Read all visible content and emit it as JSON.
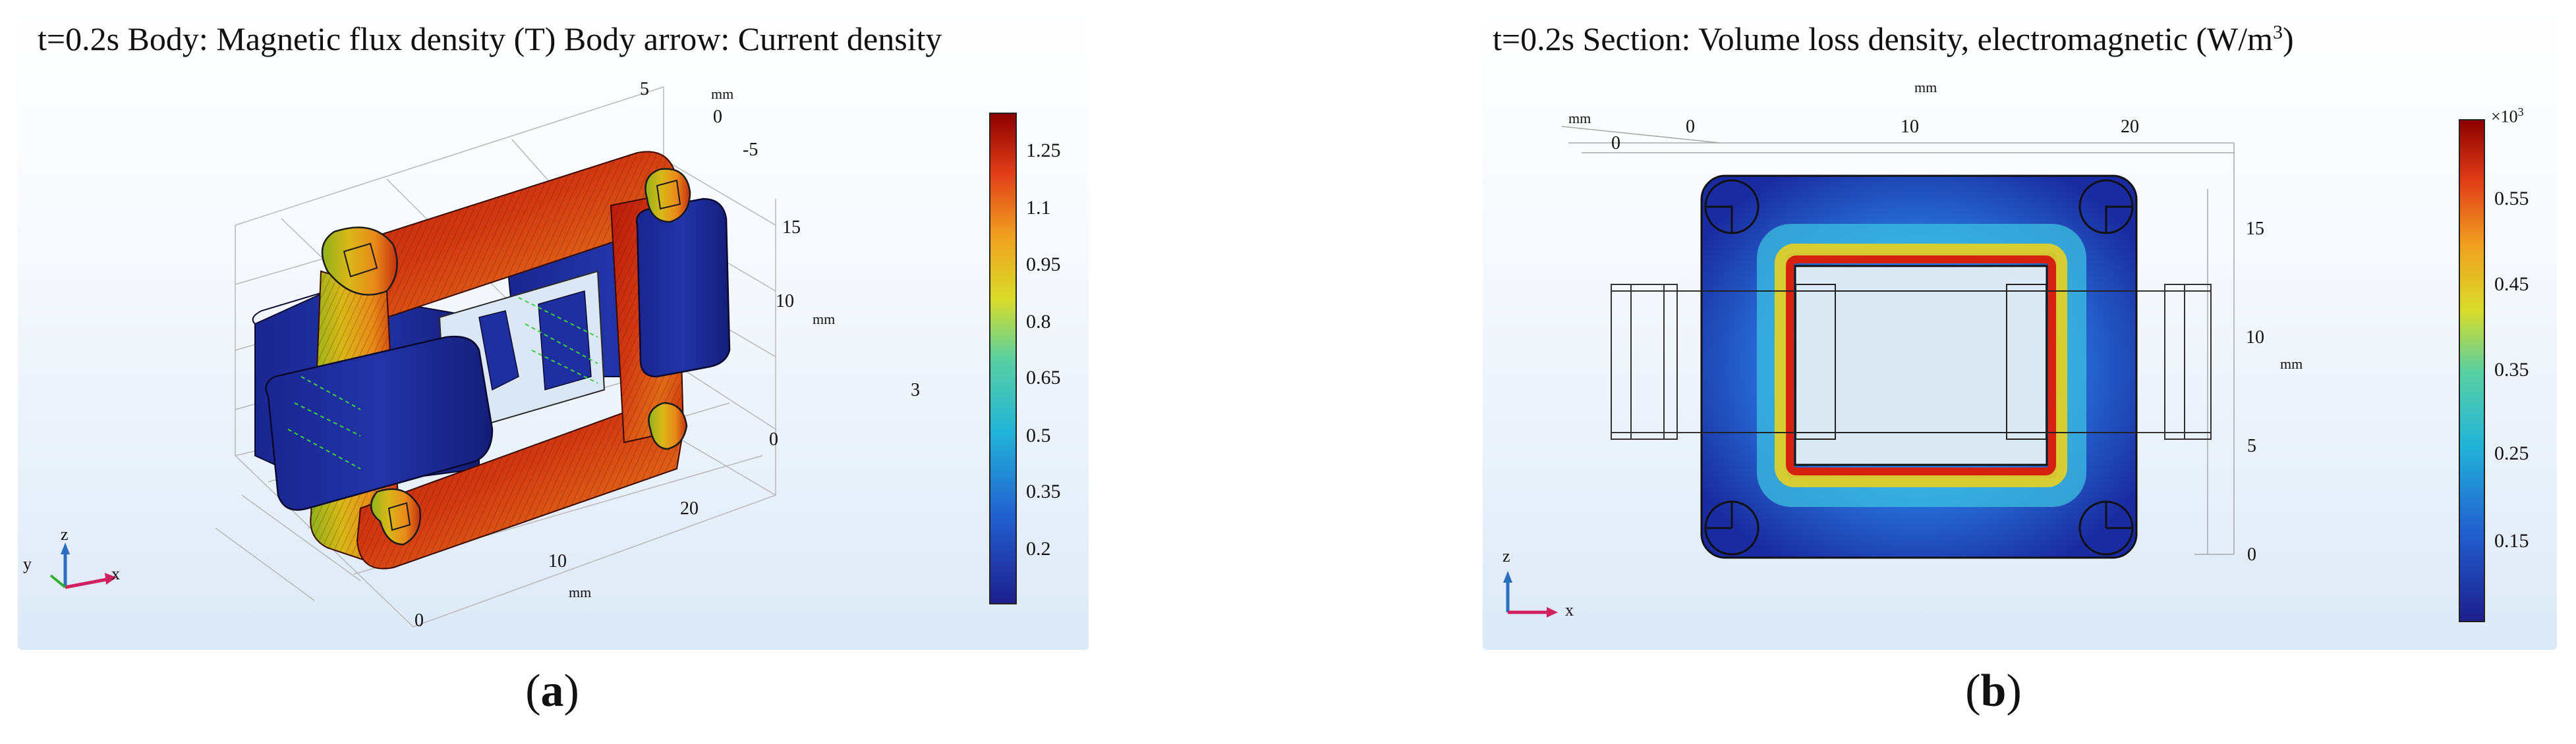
{
  "colors": {
    "high": "#a40000",
    "low": "#1e2a96",
    "panel_bg_bottom": "#dde9f7"
  },
  "panel_a": {
    "title": "t=0.2s  Body: Magnetic flux density (T) Body arrow: Current density",
    "caption_open": "(",
    "caption_letter": "a",
    "caption_close": ")",
    "colorbar_ticks": [
      "1.25",
      "1.1",
      "0.95",
      "0.8",
      "0.65",
      "0.5",
      "0.35",
      "0.2"
    ],
    "axis_ticks": {
      "top": [
        "5",
        "0",
        "-5"
      ],
      "top_unit": "mm",
      "right": [
        "15",
        "10",
        "0"
      ],
      "right_unit": "mm",
      "bottom": [
        "20",
        "10",
        "0"
      ],
      "bottom_unit": "mm",
      "stray": "3"
    },
    "triad": {
      "x": "x",
      "y": "y",
      "z": "z"
    }
  },
  "panel_b": {
    "title_main": "t=0.2s  Section: Volume loss density, electromagnetic (W/m",
    "title_sup": "3",
    "title_end": ")",
    "caption_open": "(",
    "caption_letter": "b",
    "caption_close": ")",
    "colorbar_exponent_base": "×10",
    "colorbar_exponent_power": "3",
    "colorbar_ticks": [
      "0.55",
      "0.45",
      "0.35",
      "0.25",
      "0.15"
    ],
    "axis_ticks": {
      "top_unit": "mm",
      "top": [
        "0",
        "10",
        "20"
      ],
      "left_unit": "mm",
      "left_zero": "0",
      "right": [
        "15",
        "10",
        "5",
        "0"
      ],
      "right_unit": "mm"
    },
    "triad": {
      "x": "x",
      "z": "z"
    }
  }
}
